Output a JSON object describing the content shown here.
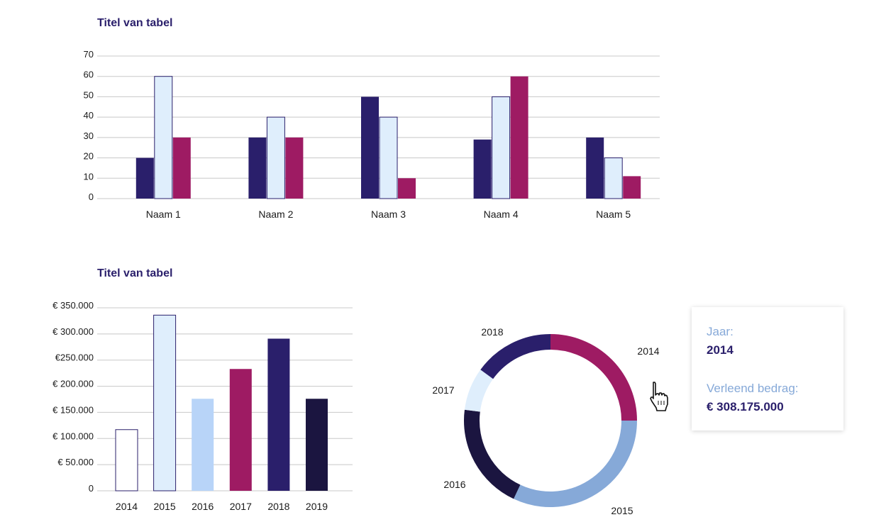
{
  "colors": {
    "navy": "#2a1f6b",
    "light_blue": "#dfeefc",
    "magenta": "#9e1b63",
    "pale_blue": "#b8d4f8",
    "dark_navy": "#1b1540",
    "mid_blue": "#86a9d8",
    "grid": "#c8c8c8"
  },
  "chart_data": [
    {
      "type": "bar",
      "title": "Titel van tabel",
      "categories": [
        "Naam 1",
        "Naam 2",
        "Naam 3",
        "Naam 4",
        "Naam 5"
      ],
      "series": [
        {
          "values": [
            20,
            30,
            50,
            29,
            30
          ],
          "color": "#2a1f6b"
        },
        {
          "values": [
            60,
            40,
            40,
            50,
            20
          ],
          "color": "#dfeefc"
        },
        {
          "values": [
            30,
            30,
            10,
            60,
            11
          ],
          "color": "#9e1b63"
        }
      ],
      "yticks": [
        "0",
        "10",
        "20",
        "30",
        "40",
        "50",
        "60",
        "70"
      ],
      "ylim": [
        0,
        70
      ],
      "grid": true
    },
    {
      "type": "bar",
      "title": "Titel van tabel",
      "categories": [
        "2014",
        "2015",
        "2016",
        "2017",
        "2018",
        "2019"
      ],
      "values": [
        117000,
        336000,
        176000,
        233000,
        291000,
        176000
      ],
      "bar_colors": [
        "#ffffff",
        "#dfeefc",
        "#b8d4f8",
        "#9e1b63",
        "#2a1f6b",
        "#1b1540"
      ],
      "yticks": [
        "0",
        "€ 50.000",
        "€ 100.000",
        "€ 150.000",
        "€ 200.000",
        "€250.000",
        "€ 300.000",
        "€ 350.000"
      ],
      "ylim": [
        0,
        350000
      ],
      "grid": true
    },
    {
      "type": "pie",
      "donut": true,
      "labels": [
        "2014",
        "2015",
        "2016",
        "2017",
        "2018"
      ],
      "values": [
        25,
        32,
        20,
        8,
        15
      ],
      "colors": [
        "#9e1b63",
        "#86a9d8",
        "#1b1540",
        "#dfeefc",
        "#2a1f6b"
      ]
    }
  ],
  "tooltip": {
    "year_label": "Jaar:",
    "year_value": "2014",
    "amount_label": "Verleend bedrag:",
    "amount_value": "€ 308.175.000"
  },
  "icons": {
    "cursor": "hand-pointer-icon"
  }
}
